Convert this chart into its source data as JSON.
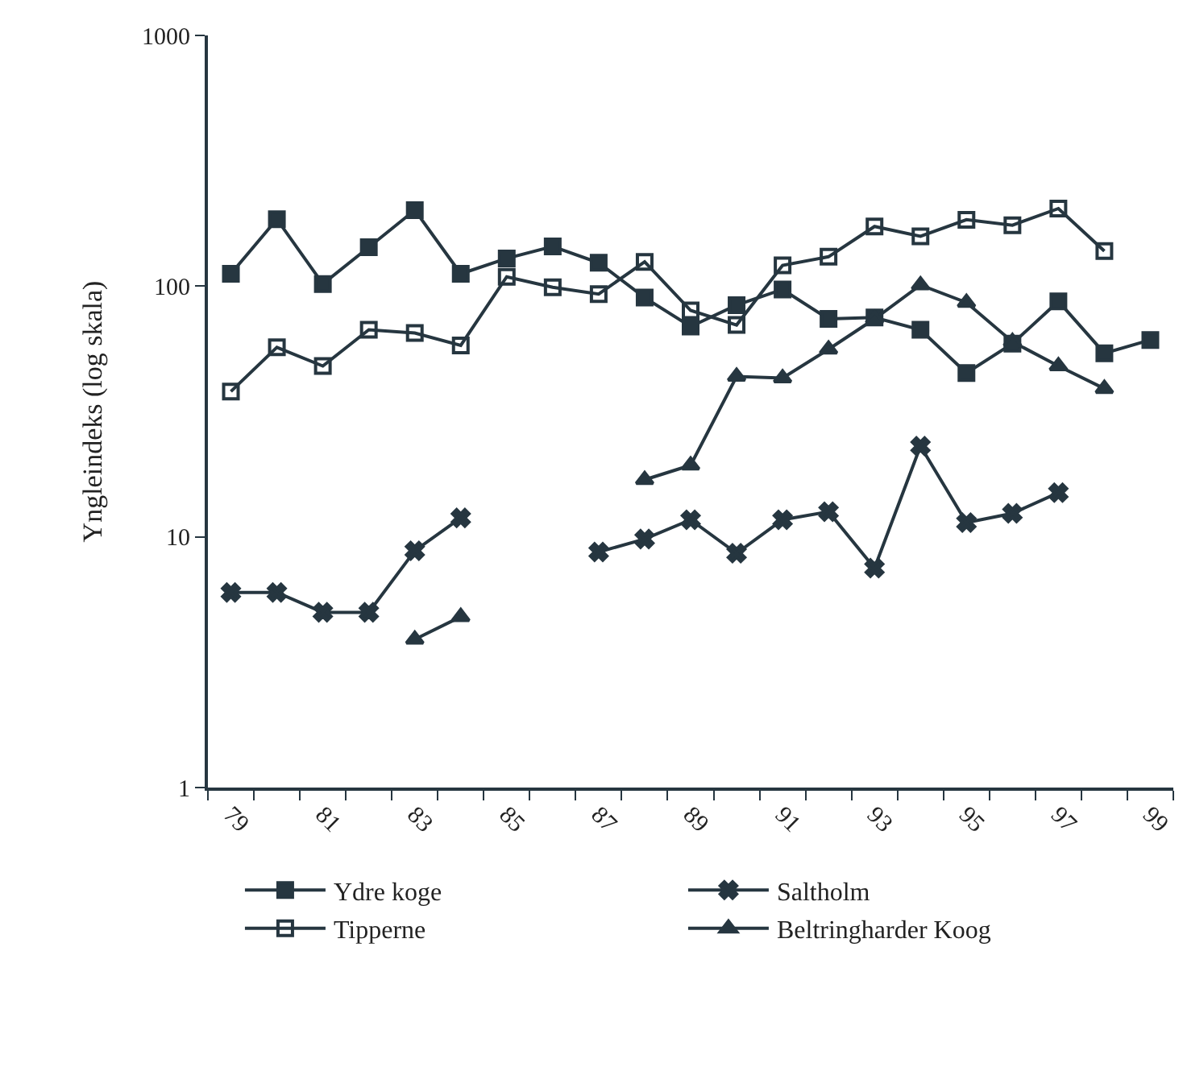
{
  "chart_data": {
    "type": "line",
    "ylabel": "Yngleindeks (log skala)",
    "categories": [
      "79",
      null,
      "81",
      null,
      "83",
      null,
      "85",
      null,
      "87",
      null,
      "89",
      null,
      "91",
      null,
      "93",
      null,
      "95",
      null,
      "97",
      null,
      "99"
    ],
    "series": [
      {
        "name": "Ydre koge",
        "color": "#263640",
        "marker": "square",
        "values": [
          112,
          185,
          102,
          143,
          201,
          112,
          129,
          144,
          124,
          90,
          69,
          84,
          97,
          74,
          75,
          67,
          45,
          59,
          87,
          54,
          61
        ]
      },
      {
        "name": "Saltholm",
        "color": "#263640",
        "marker": "cross",
        "values": [
          6,
          6,
          5.0,
          5.0,
          8.8,
          11.9,
          null,
          null,
          8.7,
          9.8,
          11.7,
          8.6,
          11.7,
          12.6,
          7.5,
          23,
          11.4,
          12.4,
          15.0,
          null,
          null
        ]
      },
      {
        "name": "Tipperne",
        "color": "#263640",
        "marker": "square-open",
        "values": [
          38,
          57,
          48,
          67,
          65,
          58,
          109,
          99,
          93,
          125,
          80,
          70,
          121,
          131,
          173,
          158,
          184,
          175,
          204,
          138,
          null
        ]
      },
      {
        "name": "Beltringharder Koog",
        "color": "#263640",
        "marker": "triangle",
        "values": [
          null,
          null,
          null,
          null,
          3.9,
          4.8,
          null,
          null,
          null,
          16.9,
          19.3,
          43.6,
          43,
          56,
          74,
          101,
          86,
          60,
          48,
          39,
          null
        ]
      }
    ],
    "log": "y",
    "ylim": [
      1,
      1000
    ],
    "yticks": [
      1,
      10,
      100,
      1000
    ],
    "legend": "bottom",
    "line_style": "solid"
  }
}
